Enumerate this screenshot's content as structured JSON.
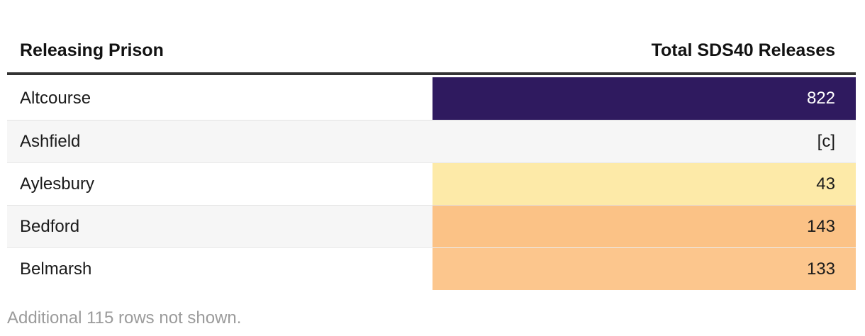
{
  "table": {
    "columns": [
      {
        "label": "Releasing Prison"
      },
      {
        "label": "Total SDS40 Releases"
      }
    ],
    "rows": [
      {
        "prison": "Altcourse",
        "value": "822",
        "row_bg": "#ffffff",
        "cell_bg": "#2f1a5f",
        "cell_text": "#ffffff"
      },
      {
        "prison": "Ashfield",
        "value": "[c]",
        "row_bg": "#f6f6f6",
        "cell_bg": "#f6f6f6",
        "cell_text": "#1a1a1a"
      },
      {
        "prison": "Aylesbury",
        "value": "43",
        "row_bg": "#ffffff",
        "cell_bg": "#fdeaa8",
        "cell_text": "#1a1a1a"
      },
      {
        "prison": "Bedford",
        "value": "143",
        "row_bg": "#f6f6f6",
        "cell_bg": "#fbc286",
        "cell_text": "#1a1a1a"
      },
      {
        "prison": "Belmarsh",
        "value": "133",
        "row_bg": "#ffffff",
        "cell_bg": "#fcc68d",
        "cell_text": "#1a1a1a"
      }
    ],
    "footer_note": "Additional 115 rows not shown."
  },
  "colors": {
    "header_rule": "#333333",
    "footer_text": "#9b9b9b",
    "separator": "rgba(0,0,0,0.08)"
  },
  "chart_data": {
    "type": "table",
    "title": "",
    "columns": [
      "Releasing Prison",
      "Total SDS40 Releases"
    ],
    "rows": [
      [
        "Altcourse",
        "822"
      ],
      [
        "Ashfield",
        "[c]"
      ],
      [
        "Aylesbury",
        "43"
      ],
      [
        "Bedford",
        "143"
      ],
      [
        "Belmarsh",
        "133"
      ]
    ],
    "note": "Additional 115 rows not shown.",
    "value_cell_heatmap_colors": [
      "#2f1a5f",
      "#f6f6f6",
      "#fdeaa8",
      "#fbc286",
      "#fcc68d"
    ],
    "legend_position": "none",
    "grid": "row-separators"
  }
}
